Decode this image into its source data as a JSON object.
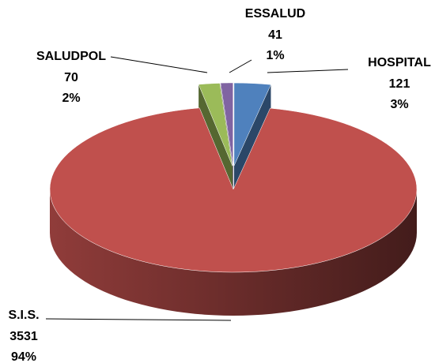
{
  "chart_data": {
    "type": "pie3d",
    "categories": [
      "HOSPITAL",
      "S.I.S.",
      "SALUDPOL",
      "ESSALUD"
    ],
    "values": [
      121,
      3531,
      70,
      41
    ],
    "percent_labels": [
      "3%",
      "94%",
      "2%",
      "1%"
    ],
    "colors": [
      "#4f81bd",
      "#c0504d",
      "#9bbb59",
      "#8064a2"
    ]
  }
}
